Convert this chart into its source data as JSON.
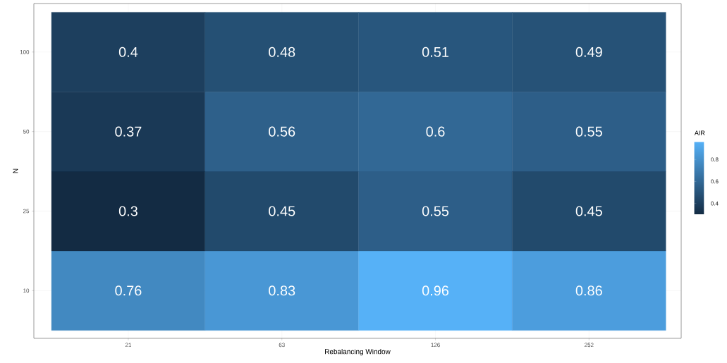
{
  "chart_data": {
    "type": "heatmap",
    "xlabel": "Rebalancing Window",
    "ylabel": "N",
    "clabel": "AIR",
    "categories": [
      "21",
      "63",
      "126",
      "252"
    ],
    "y_categories": [
      "100",
      "50",
      "25",
      "10"
    ],
    "cells": [
      [
        0.4,
        0.48,
        0.51,
        0.49
      ],
      [
        0.37,
        0.56,
        0.6,
        0.55
      ],
      [
        0.3,
        0.45,
        0.55,
        0.45
      ],
      [
        0.76,
        0.83,
        0.96,
        0.86
      ]
    ],
    "data_labels": true,
    "clim": [
      0.3,
      0.96
    ],
    "cticks": [
      0.4,
      0.6,
      0.8
    ],
    "colors": [
      "#132b43",
      "#56b1f7"
    ],
    "grid": true
  }
}
